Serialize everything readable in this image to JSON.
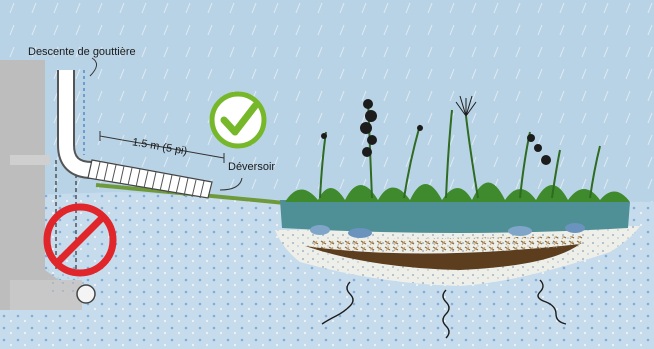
{
  "labels": {
    "downspout": "Descente de gouttière",
    "distance": "1.5 m (5 pi)",
    "overflow": "Déversoir"
  },
  "icons": {
    "correct": "check-mark-icon",
    "incorrect": "no-symbol-icon"
  },
  "colors": {
    "sky": "#b9d3e6",
    "ground": "#c6dced",
    "check_green": "#76b82a",
    "prohibit_red": "#e0252b",
    "pond": "#4f8f96",
    "gravel": "#efefea"
  }
}
